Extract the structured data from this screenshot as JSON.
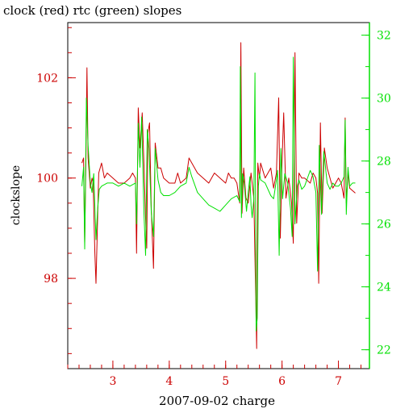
{
  "chart_data": {
    "type": "line",
    "title": "clock (red) rtc (green) slopes",
    "xlabel": "2007-09-02 charge",
    "ylabel": "clockslope",
    "ylabel_right": "",
    "xlim": [
      2.2,
      7.55
    ],
    "ylim": [
      96.2,
      103.1
    ],
    "ylim_right": [
      21.4,
      32.4
    ],
    "x_ticks": [
      3,
      4,
      5,
      6,
      7
    ],
    "y_ticks_left": [
      98,
      100,
      102
    ],
    "y_ticks_right": [
      22,
      24,
      26,
      28,
      30,
      32
    ],
    "grid": false,
    "colors": {
      "left_axis": "#cc0000",
      "right_axis": "#00e000",
      "clock": "#cc0000",
      "rtc": "#00e000"
    },
    "series": [
      {
        "color": "#cc0000",
        "axis": "left",
        "points": [
          [
            2.45,
            100.3
          ],
          [
            2.48,
            100.4
          ],
          [
            2.5,
            98.7
          ],
          [
            2.52,
            100.2
          ],
          [
            2.54,
            102.2
          ],
          [
            2.56,
            100.4
          ],
          [
            2.6,
            99.8
          ],
          [
            2.63,
            100.0
          ],
          [
            2.65,
            99.9
          ],
          [
            2.68,
            98.5
          ],
          [
            2.7,
            97.9
          ],
          [
            2.72,
            98.8
          ],
          [
            2.75,
            100.1
          ],
          [
            2.8,
            100.3
          ],
          [
            2.85,
            100.0
          ],
          [
            2.9,
            100.1
          ],
          [
            3.0,
            100.0
          ],
          [
            3.1,
            99.9
          ],
          [
            3.2,
            99.9
          ],
          [
            3.3,
            100.0
          ],
          [
            3.35,
            100.1
          ],
          [
            3.4,
            100.0
          ],
          [
            3.42,
            98.5
          ],
          [
            3.45,
            101.4
          ],
          [
            3.48,
            100.6
          ],
          [
            3.52,
            101.3
          ],
          [
            3.55,
            100.3
          ],
          [
            3.58,
            99.2
          ],
          [
            3.6,
            98.6
          ],
          [
            3.62,
            100.9
          ],
          [
            3.65,
            101.1
          ],
          [
            3.68,
            99.4
          ],
          [
            3.72,
            98.2
          ],
          [
            3.75,
            100.7
          ],
          [
            3.8,
            100.2
          ],
          [
            3.85,
            100.2
          ],
          [
            3.9,
            100.0
          ],
          [
            4.0,
            99.9
          ],
          [
            4.1,
            99.9
          ],
          [
            4.15,
            100.1
          ],
          [
            4.2,
            99.9
          ],
          [
            4.3,
            100.0
          ],
          [
            4.35,
            100.4
          ],
          [
            4.4,
            100.3
          ],
          [
            4.5,
            100.1
          ],
          [
            4.6,
            100.0
          ],
          [
            4.7,
            99.9
          ],
          [
            4.8,
            100.1
          ],
          [
            4.9,
            100.0
          ],
          [
            5.0,
            99.9
          ],
          [
            5.05,
            100.1
          ],
          [
            5.1,
            100.0
          ],
          [
            5.15,
            100.0
          ],
          [
            5.2,
            99.9
          ],
          [
            5.25,
            99.5
          ],
          [
            5.27,
            102.7
          ],
          [
            5.29,
            99.3
          ],
          [
            5.32,
            100.2
          ],
          [
            5.36,
            99.6
          ],
          [
            5.4,
            99.5
          ],
          [
            5.45,
            100.1
          ],
          [
            5.5,
            99.6
          ],
          [
            5.55,
            96.6
          ],
          [
            5.57,
            100.3
          ],
          [
            5.6,
            100.0
          ],
          [
            5.62,
            100.3
          ],
          [
            5.7,
            100.0
          ],
          [
            5.8,
            100.2
          ],
          [
            5.85,
            99.8
          ],
          [
            5.9,
            100.1
          ],
          [
            5.94,
            101.6
          ],
          [
            5.97,
            98.8
          ],
          [
            6.0,
            100.3
          ],
          [
            6.03,
            101.3
          ],
          [
            6.07,
            99.6
          ],
          [
            6.12,
            100.0
          ],
          [
            6.17,
            99.5
          ],
          [
            6.2,
            98.7
          ],
          [
            6.23,
            102.5
          ],
          [
            6.26,
            99.1
          ],
          [
            6.3,
            100.1
          ],
          [
            6.35,
            100.0
          ],
          [
            6.4,
            100.0
          ],
          [
            6.5,
            99.9
          ],
          [
            6.55,
            100.1
          ],
          [
            6.6,
            100.0
          ],
          [
            6.63,
            99.7
          ],
          [
            6.65,
            97.9
          ],
          [
            6.68,
            101.1
          ],
          [
            6.71,
            99.3
          ],
          [
            6.75,
            100.6
          ],
          [
            6.8,
            100.2
          ],
          [
            6.85,
            100.0
          ],
          [
            6.9,
            99.8
          ],
          [
            6.95,
            99.9
          ],
          [
            7.0,
            100.0
          ],
          [
            7.05,
            99.9
          ],
          [
            7.1,
            99.6
          ],
          [
            7.12,
            101.2
          ],
          [
            7.14,
            99.5
          ],
          [
            7.17,
            100.1
          ],
          [
            7.2,
            99.8
          ],
          [
            7.3,
            99.7
          ]
        ]
      },
      {
        "color": "#00e000",
        "axis": "right",
        "points": [
          [
            2.45,
            27.2
          ],
          [
            2.48,
            27.8
          ],
          [
            2.5,
            25.2
          ],
          [
            2.53,
            30.0
          ],
          [
            2.56,
            28.5
          ],
          [
            2.6,
            27.3
          ],
          [
            2.63,
            27.0
          ],
          [
            2.66,
            27.6
          ],
          [
            2.7,
            25.5
          ],
          [
            2.73,
            26.5
          ],
          [
            2.76,
            27.1
          ],
          [
            2.8,
            27.2
          ],
          [
            2.9,
            27.3
          ],
          [
            3.0,
            27.3
          ],
          [
            3.1,
            27.2
          ],
          [
            3.2,
            27.3
          ],
          [
            3.3,
            27.2
          ],
          [
            3.4,
            27.3
          ],
          [
            3.42,
            26.0
          ],
          [
            3.45,
            29.2
          ],
          [
            3.48,
            27.8
          ],
          [
            3.51,
            29.4
          ],
          [
            3.55,
            26.4
          ],
          [
            3.58,
            25.0
          ],
          [
            3.61,
            29.0
          ],
          [
            3.64,
            28.4
          ],
          [
            3.68,
            26.4
          ],
          [
            3.72,
            25.6
          ],
          [
            3.75,
            28.4
          ],
          [
            3.8,
            27.4
          ],
          [
            3.85,
            27.0
          ],
          [
            3.9,
            26.9
          ],
          [
            4.0,
            26.9
          ],
          [
            4.1,
            27.0
          ],
          [
            4.2,
            27.2
          ],
          [
            4.3,
            27.3
          ],
          [
            4.35,
            27.8
          ],
          [
            4.4,
            27.5
          ],
          [
            4.5,
            27.0
          ],
          [
            4.6,
            26.8
          ],
          [
            4.7,
            26.6
          ],
          [
            4.8,
            26.5
          ],
          [
            4.9,
            26.4
          ],
          [
            5.0,
            26.6
          ],
          [
            5.1,
            26.8
          ],
          [
            5.2,
            26.9
          ],
          [
            5.25,
            26.7
          ],
          [
            5.26,
            31.0
          ],
          [
            5.28,
            26.2
          ],
          [
            5.3,
            27.6
          ],
          [
            5.33,
            27.3
          ],
          [
            5.37,
            26.4
          ],
          [
            5.4,
            27.0
          ],
          [
            5.43,
            27.5
          ],
          [
            5.45,
            26.6
          ],
          [
            5.47,
            26.2
          ],
          [
            5.5,
            26.8
          ],
          [
            5.52,
            30.8
          ],
          [
            5.54,
            22.6
          ],
          [
            5.56,
            23.0
          ],
          [
            5.58,
            27.2
          ],
          [
            5.6,
            27.6
          ],
          [
            5.62,
            27.4
          ],
          [
            5.7,
            27.3
          ],
          [
            5.8,
            26.9
          ],
          [
            5.85,
            26.8
          ],
          [
            5.9,
            27.4
          ],
          [
            5.92,
            27.7
          ],
          [
            5.95,
            25.0
          ],
          [
            5.98,
            28.4
          ],
          [
            6.01,
            26.8
          ],
          [
            6.05,
            27.6
          ],
          [
            6.1,
            27.3
          ],
          [
            6.15,
            26.5
          ],
          [
            6.18,
            25.6
          ],
          [
            6.2,
            31.3
          ],
          [
            6.23,
            26.0
          ],
          [
            6.27,
            27.2
          ],
          [
            6.3,
            27.4
          ],
          [
            6.35,
            27.1
          ],
          [
            6.4,
            27.2
          ],
          [
            6.5,
            27.7
          ],
          [
            6.55,
            27.5
          ],
          [
            6.6,
            27.0
          ],
          [
            6.63,
            24.5
          ],
          [
            6.66,
            28.5
          ],
          [
            6.7,
            26.3
          ],
          [
            6.74,
            28.3
          ],
          [
            6.8,
            27.3
          ],
          [
            6.85,
            27.1
          ],
          [
            6.9,
            27.3
          ],
          [
            6.95,
            27.2
          ],
          [
            7.0,
            27.2
          ],
          [
            7.05,
            27.3
          ],
          [
            7.1,
            27.5
          ],
          [
            7.12,
            29.3
          ],
          [
            7.14,
            26.3
          ],
          [
            7.17,
            27.8
          ],
          [
            7.2,
            27.2
          ],
          [
            7.25,
            27.3
          ],
          [
            7.3,
            27.3
          ]
        ]
      }
    ]
  }
}
